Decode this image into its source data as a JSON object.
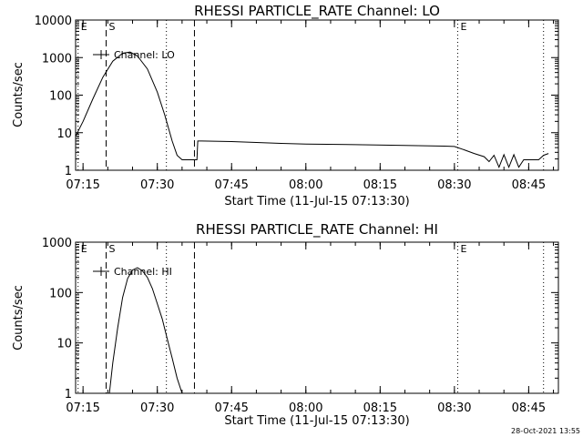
{
  "timestamp": "28-Oct-2021 13:55",
  "chart_data": [
    {
      "type": "line",
      "title": "RHESSI PARTICLE_RATE Channel: LO",
      "xlabel": "Start Time (11-Jul-15 07:13:30)",
      "ylabel": "Counts/sec",
      "y_scale": "log",
      "xlim": [
        "07:13:30",
        "08:51:00"
      ],
      "ylim": [
        1,
        10000
      ],
      "xticks": [
        "07:15",
        "07:30",
        "07:45",
        "08:00",
        "08:15",
        "08:30",
        "08:45"
      ],
      "yticks": [
        "1",
        "10",
        "100",
        "1000",
        "10000"
      ],
      "legend": {
        "position": "top-left",
        "entries": [
          "Channel: LO"
        ]
      },
      "markers": [
        {
          "label": "E",
          "time": "07:14:00",
          "style": "dotted"
        },
        {
          "label": "S",
          "time": "07:19:40",
          "style": "dashed"
        },
        {
          "label": "",
          "time": "07:31:50",
          "style": "dotted"
        },
        {
          "label": "",
          "time": "07:37:30",
          "style": "dashed"
        },
        {
          "label": "E",
          "time": "08:30:40",
          "style": "dotted"
        },
        {
          "label": "",
          "time": "08:48:00",
          "style": "dotted"
        }
      ],
      "series": [
        {
          "x": [
            "07:13:30",
            "07:15:00",
            "07:17:00",
            "07:19:00",
            "07:21:00",
            "07:23:00",
            "07:24:30",
            "07:26:00",
            "07:28:00",
            "07:30:00",
            "07:31:30",
            "07:33:00",
            "07:34:00",
            "07:35:00",
            "07:37:00",
            "07:38:00",
            "07:38:10",
            "07:39:00",
            "07:45:00",
            "07:50:00",
            "07:55:00",
            "08:00:00",
            "08:10:00",
            "08:20:00",
            "08:28:00",
            "08:30:00",
            "08:32:00",
            "08:34:00",
            "08:36:00",
            "08:37:00",
            "08:38:00",
            "08:39:00",
            "08:40:00",
            "08:41:00",
            "08:42:00",
            "08:43:00",
            "08:44:00",
            "08:45:00",
            "08:46:00",
            "08:47:00",
            "08:48:00",
            "08:49:00"
          ],
          "y": [
            8,
            20,
            80,
            300,
            800,
            1300,
            1400,
            1100,
            500,
            120,
            30,
            6,
            2.5,
            1.9,
            1.9,
            1.9,
            6,
            6,
            5.8,
            5.5,
            5.2,
            5,
            4.8,
            4.6,
            4.4,
            4.3,
            3.5,
            2.8,
            2.3,
            1.7,
            2.5,
            1.2,
            2.6,
            1.2,
            2.6,
            1.2,
            1.9,
            1.9,
            1.9,
            1.9,
            2.5,
            2.8
          ]
        }
      ]
    },
    {
      "type": "line",
      "title": "RHESSI PARTICLE_RATE Channel: HI",
      "xlabel": "Start Time (11-Jul-15 07:13:30)",
      "ylabel": "Counts/sec",
      "y_scale": "log",
      "xlim": [
        "07:13:30",
        "08:51:00"
      ],
      "ylim": [
        1,
        1000
      ],
      "xticks": [
        "07:15",
        "07:30",
        "07:45",
        "08:00",
        "08:15",
        "08:30",
        "08:45"
      ],
      "yticks": [
        "1",
        "10",
        "100",
        "1000"
      ],
      "legend": {
        "position": "top-left",
        "entries": [
          "Channel: HI"
        ]
      },
      "markers": [
        {
          "label": "E",
          "time": "07:14:00",
          "style": "dotted"
        },
        {
          "label": "S",
          "time": "07:19:40",
          "style": "dashed"
        },
        {
          "label": "",
          "time": "07:31:50",
          "style": "dotted"
        },
        {
          "label": "",
          "time": "07:37:30",
          "style": "dashed"
        },
        {
          "label": "E",
          "time": "08:30:40",
          "style": "dotted"
        },
        {
          "label": "",
          "time": "08:48:00",
          "style": "dotted"
        }
      ],
      "series": [
        {
          "x": [
            "07:20:20",
            "07:21:00",
            "07:22:00",
            "07:23:00",
            "07:24:00",
            "07:25:00",
            "07:26:00",
            "07:27:00",
            "07:28:00",
            "07:29:00",
            "07:30:00",
            "07:31:00",
            "07:32:00",
            "07:33:00",
            "07:34:00",
            "07:35:00"
          ],
          "y": [
            1,
            4,
            20,
            80,
            190,
            280,
            310,
            270,
            200,
            120,
            60,
            30,
            12,
            5,
            2,
            1
          ]
        }
      ]
    }
  ]
}
